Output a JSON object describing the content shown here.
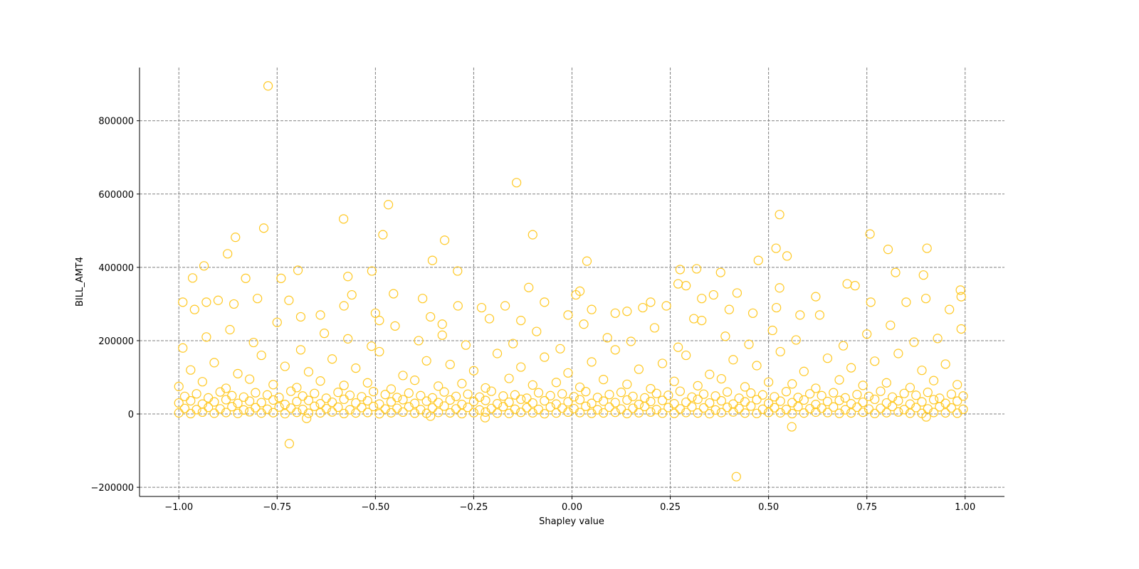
{
  "chart_data": {
    "type": "scatter",
    "title": "",
    "xlabel": "Shapley value",
    "ylabel": "BILL_AMT4",
    "xlim": [
      -1.1,
      1.1
    ],
    "ylim": [
      -225000,
      945000
    ],
    "xticks": [
      -1.0,
      -0.75,
      -0.5,
      -0.25,
      0.0,
      0.25,
      0.5,
      0.75,
      1.0
    ],
    "xtick_labels": [
      "−1.00",
      "−0.75",
      "−0.50",
      "−0.25",
      "0.00",
      "0.25",
      "0.50",
      "0.75",
      "1.00"
    ],
    "yticks": [
      -200000,
      0,
      200000,
      400000,
      600000,
      800000
    ],
    "ytick_labels": [
      "−200000",
      "0",
      "200000",
      "400000",
      "600000",
      "800000"
    ],
    "grid": true,
    "grid_style": "dashed",
    "marker": "hollow-circle",
    "color": "#FFC822",
    "grid_color": "#808080",
    "rows": [
      {
        "x": [
          -1,
          -0.97,
          -0.94,
          -0.91,
          -0.88,
          -0.85,
          -0.82,
          -0.79,
          -0.76,
          -0.73,
          -0.7,
          -0.67,
          -0.64,
          -0.61,
          -0.58,
          -0.55,
          -0.52,
          -0.49,
          -0.46,
          -0.43,
          -0.4,
          -0.37,
          -0.34,
          -0.31,
          -0.28,
          -0.25,
          -0.22,
          -0.19,
          -0.16,
          -0.13,
          -0.1,
          -0.07,
          -0.04,
          -0.01,
          0.02,
          0.05,
          0.08,
          0.11,
          0.14,
          0.17,
          0.2,
          0.23,
          0.26,
          0.29,
          0.32,
          0.35,
          0.38,
          0.41,
          0.44,
          0.47,
          0.5,
          0.53,
          0.56,
          0.59,
          0.62,
          0.65,
          0.68,
          0.71,
          0.74,
          0.77,
          0.8,
          0.83,
          0.86,
          0.89,
          0.92,
          0.95,
          0.98
        ],
        "y": [
          3000,
          1000,
          5000,
          2000,
          4000,
          1500,
          6000,
          2500,
          3500,
          800,
          4500,
          2000,
          3000,
          5500,
          1200,
          2800,
          4000,
          600,
          3300,
          5000,
          2200,
          1800,
          4200,
          3000,
          900,
          3600,
          5200,
          2400,
          1500,
          4400,
          3100,
          700,
          2600,
          5100,
          3800,
          1900,
          2900,
          4600,
          1100,
          3400,
          5300,
          2100,
          1600,
          4100,
          2700,
          800,
          3700,
          5400,
          2300,
          1400,
          4300,
          3200,
          1000,
          2500,
          4900,
          3900,
          1700,
          2800,
          4700,
          1300,
          3500,
          5600,
          2000,
          1500,
          4000,
          3000,
          2200
        ]
      },
      {
        "x": [
          -0.985,
          -0.955,
          -0.925,
          -0.895,
          -0.865,
          -0.835,
          -0.805,
          -0.775,
          -0.745,
          -0.715,
          -0.685,
          -0.655,
          -0.625,
          -0.595,
          -0.565,
          -0.535,
          -0.505,
          -0.475,
          -0.445,
          -0.415,
          -0.385,
          -0.355,
          -0.325,
          -0.295,
          -0.265,
          -0.235,
          -0.205,
          -0.175,
          -0.145,
          -0.115,
          -0.085,
          -0.055,
          -0.025,
          0.005,
          0.035,
          0.065,
          0.095,
          0.125,
          0.155,
          0.185,
          0.215,
          0.245,
          0.275,
          0.305,
          0.335,
          0.365,
          0.395,
          0.425,
          0.455,
          0.485,
          0.515,
          0.545,
          0.575,
          0.605,
          0.635,
          0.665,
          0.695,
          0.725,
          0.755,
          0.785,
          0.815,
          0.845,
          0.875,
          0.905,
          0.935,
          0.965,
          0.995
        ],
        "y": [
          15000,
          12000,
          18000,
          14000,
          20000,
          11000,
          17000,
          13000,
          19000,
          16000,
          12500,
          21000,
          14500,
          18500,
          11500,
          17500,
          20500,
          13500,
          15500,
          19500,
          12000,
          16500,
          21500,
          14000,
          18000,
          11000,
          15000,
          20000,
          13000,
          17000,
          12500,
          19000,
          16000,
          14500,
          21000,
          11500,
          18500,
          13500,
          15500,
          20500,
          12000,
          17500,
          14000,
          19500,
          16500,
          11000,
          18000,
          15000,
          21500,
          13000,
          17000,
          12500,
          20000,
          14500,
          16000,
          19000,
          11500,
          18500,
          13500,
          15500,
          20500,
          12000,
          17500,
          14000,
          19500,
          16500,
          13000
        ]
      },
      {
        "x": [
          -1,
          -0.97,
          -0.94,
          -0.91,
          -0.88,
          -0.85,
          -0.82,
          -0.79,
          -0.76,
          -0.73,
          -0.7,
          -0.67,
          -0.64,
          -0.61,
          -0.58,
          -0.55,
          -0.52,
          -0.49,
          -0.46,
          -0.43,
          -0.4,
          -0.37,
          -0.34,
          -0.31,
          -0.28,
          -0.25,
          -0.22,
          -0.19,
          -0.16,
          -0.13,
          -0.1,
          -0.07,
          -0.04,
          -0.01,
          0.02,
          0.05,
          0.08,
          0.11,
          0.14,
          0.17,
          0.2,
          0.23,
          0.26,
          0.29,
          0.32,
          0.35,
          0.38,
          0.41,
          0.44,
          0.47,
          0.5,
          0.53,
          0.56,
          0.59,
          0.62,
          0.65,
          0.68,
          0.71,
          0.74,
          0.77,
          0.8,
          0.83,
          0.86,
          0.89,
          0.92,
          0.95,
          0.98
        ],
        "y": [
          30000,
          36000,
          27000,
          33000,
          39000,
          29000,
          35000,
          31000,
          38000,
          26000,
          34000,
          37000,
          28000,
          32000,
          40000,
          30000,
          36000,
          27000,
          33000,
          39000,
          29000,
          35000,
          31000,
          38000,
          26000,
          34000,
          37000,
          28000,
          32000,
          40000,
          30000,
          36000,
          27000,
          33000,
          39000,
          29000,
          35000,
          31000,
          38000,
          26000,
          34000,
          37000,
          28000,
          32000,
          40000,
          30000,
          36000,
          27000,
          33000,
          39000,
          29000,
          35000,
          31000,
          38000,
          26000,
          34000,
          37000,
          28000,
          32000,
          40000,
          30000,
          36000,
          27000,
          33000,
          39000,
          29000,
          35000
        ]
      },
      {
        "x": [
          -0.985,
          -0.955,
          -0.925,
          -0.895,
          -0.865,
          -0.835,
          -0.805,
          -0.775,
          -0.745,
          -0.715,
          -0.685,
          -0.655,
          -0.625,
          -0.595,
          -0.565,
          -0.535,
          -0.505,
          -0.475,
          -0.445,
          -0.415,
          -0.385,
          -0.355,
          -0.325,
          -0.295,
          -0.265,
          -0.235,
          -0.205,
          -0.175,
          -0.145,
          -0.115,
          -0.085,
          -0.055,
          -0.025,
          0.005,
          0.035,
          0.065,
          0.095,
          0.125,
          0.155,
          0.185,
          0.215,
          0.245,
          0.275,
          0.305,
          0.335,
          0.365,
          0.395,
          0.425,
          0.455,
          0.485,
          0.515,
          0.545,
          0.575,
          0.605,
          0.635,
          0.665,
          0.695,
          0.725,
          0.755,
          0.785,
          0.815,
          0.845,
          0.875,
          0.905,
          0.935,
          0.965,
          0.995
        ],
        "y": [
          48000,
          55000,
          44000,
          60000,
          50000,
          46000,
          58000,
          52000,
          45000,
          62000,
          49000,
          56000,
          43000,
          59000,
          51000,
          47000,
          61000,
          53000,
          45000,
          57000,
          50000,
          44000,
          60000,
          48000,
          54000,
          46000,
          62000,
          49000,
          52000,
          43000,
          58000,
          50000,
          55000,
          47000,
          61000,
          45000,
          53000,
          59000,
          48000,
          44000,
          56000,
          51000,
          62000,
          46000,
          54000,
          49000,
          60000,
          43000,
          57000,
          52000,
          47000,
          61000,
          45000,
          55000,
          50000,
          58000,
          44000,
          53000,
          48000,
          62000,
          46000,
          56000,
          51000,
          59000,
          43000,
          54000,
          49000
        ]
      },
      {
        "x": [
          -1,
          -0.94,
          -0.88,
          -0.82,
          -0.76,
          -0.7,
          -0.64,
          -0.58,
          -0.52,
          -0.46,
          -0.4,
          -0.34,
          -0.28,
          -0.22,
          -0.16,
          -0.1,
          -0.04,
          0.02,
          0.08,
          0.14,
          0.2,
          0.26,
          0.32,
          0.38,
          0.44,
          0.5,
          0.56,
          0.62,
          0.68,
          0.74,
          0.8,
          0.86,
          0.92,
          0.98
        ],
        "y": [
          75000,
          88000,
          70000,
          95000,
          80000,
          72000,
          90000,
          78000,
          85000,
          68000,
          92000,
          76000,
          83000,
          71000,
          97000,
          79000,
          86000,
          73000,
          94000,
          81000,
          69000,
          89000,
          77000,
          96000,
          74000,
          87000,
          82000,
          70000,
          93000,
          78000,
          85000,
          72000,
          91000,
          80000
        ]
      },
      {
        "x": [
          -0.97,
          -0.91,
          -0.85,
          -0.79,
          -0.73,
          -0.67,
          -0.61,
          -0.55,
          -0.49,
          -0.43,
          -0.37,
          -0.31,
          -0.25,
          -0.19,
          -0.13,
          -0.07,
          -0.01,
          0.05,
          0.11,
          0.17,
          0.23,
          0.29,
          0.35,
          0.41,
          0.47,
          0.53,
          0.59,
          0.65,
          0.71,
          0.77,
          0.83,
          0.89,
          0.95
        ],
        "y": [
          120000,
          140000,
          110000,
          160000,
          130000,
          115000,
          150000,
          125000,
          170000,
          105000,
          145000,
          135000,
          118000,
          165000,
          128000,
          155000,
          112000,
          142000,
          175000,
          122000,
          138000,
          160000,
          108000,
          148000,
          132000,
          170000,
          116000,
          152000,
          126000,
          144000,
          165000,
          119000,
          136000
        ]
      },
      {
        "x": [
          -0.99,
          -0.93,
          -0.87,
          -0.81,
          -0.75,
          -0.69,
          -0.63,
          -0.57,
          -0.51,
          -0.45,
          -0.39,
          -0.33,
          -0.27,
          -0.21,
          -0.15,
          -0.09,
          -0.03,
          0.03,
          0.09,
          0.15,
          0.21,
          0.27,
          0.33,
          0.39,
          0.45,
          0.51,
          0.57,
          0.63,
          0.69,
          0.75,
          0.81,
          0.87,
          0.93,
          0.99
        ],
        "y": [
          180000,
          210000,
          230000,
          195000,
          250000,
          175000,
          220000,
          205000,
          185000,
          240000,
          200000,
          215000,
          188000,
          260000,
          192000,
          225000,
          178000,
          245000,
          208000,
          198000,
          235000,
          182000,
          255000,
          212000,
          190000,
          228000,
          202000,
          270000,
          186000,
          218000,
          242000,
          196000,
          206000,
          232000
        ]
      },
      {
        "x": [
          -0.99,
          -0.96,
          -0.93,
          -0.9,
          -0.86,
          -0.83,
          -0.8,
          -0.74,
          -0.72,
          -0.69,
          -0.64,
          -0.58,
          -0.57,
          -0.56,
          -0.5,
          -0.49,
          -0.38,
          -0.36,
          -0.33,
          -0.29,
          -0.23,
          -0.17,
          -0.13,
          -0.11,
          -0.07,
          -0.01,
          0.01,
          0.02,
          0.05,
          0.11,
          0.14,
          0.18,
          0.2,
          0.24,
          0.27,
          0.29,
          0.31,
          0.33,
          0.36,
          0.4,
          0.42,
          0.46,
          0.52,
          0.58,
          0.62,
          0.7,
          0.72,
          0.76,
          0.85,
          0.9,
          0.96,
          0.99
        ],
        "y": [
          305000,
          285000,
          305000,
          310000,
          300000,
          370000,
          315000,
          370000,
          310000,
          265000,
          270000,
          295000,
          375000,
          325000,
          275000,
          255000,
          315000,
          265000,
          245000,
          295000,
          290000,
          295000,
          255000,
          345000,
          305000,
          270000,
          325000,
          335000,
          285000,
          275000,
          280000,
          290000,
          305000,
          295000,
          355000,
          350000,
          260000,
          315000,
          325000,
          285000,
          330000,
          275000,
          290000,
          270000,
          320000,
          355000,
          350000,
          305000,
          305000,
          315000,
          285000,
          320000
        ]
      },
      {
        "x": [
          -0.773,
          -0.141,
          -0.467,
          0.528,
          -0.581,
          -0.856,
          -0.784,
          -0.481,
          -0.324,
          -0.1,
          0.758,
          -0.876,
          0.804,
          0.903,
          0.519,
          0.547,
          0.038,
          0.474,
          -0.355,
          -0.936,
          -0.965,
          -0.697,
          -0.291,
          -0.509,
          0.317,
          0.275,
          0.988,
          0.823,
          0.894,
          0.378,
          -0.454,
          0.528,
          -0.719,
          0.559,
          0.418,
          -0.675,
          -0.221,
          0.901,
          -0.36
        ],
        "y": [
          895000,
          631000,
          571000,
          544000,
          532000,
          482000,
          507000,
          489000,
          474000,
          489000,
          491000,
          437000,
          449000,
          452000,
          452000,
          431000,
          417000,
          419000,
          419000,
          404000,
          371000,
          392000,
          390000,
          390000,
          396000,
          394000,
          338000,
          386000,
          379000,
          386000,
          328000,
          344000,
          -81000,
          -35000,
          -171000,
          -12000,
          -10000,
          -8000,
          -6000
        ]
      }
    ]
  }
}
